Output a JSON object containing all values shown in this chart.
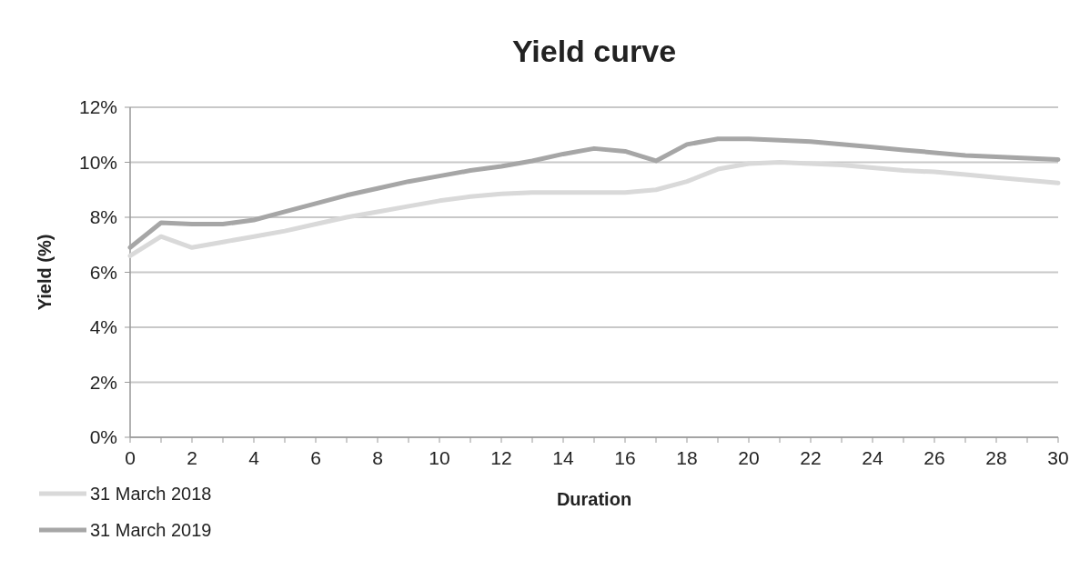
{
  "chart_data": {
    "type": "line",
    "title": "Yield curve",
    "xlabel": "Duration",
    "ylabel": "Yield (%)",
    "x": [
      0,
      1,
      2,
      3,
      4,
      5,
      6,
      7,
      8,
      9,
      10,
      11,
      12,
      13,
      14,
      15,
      16,
      17,
      18,
      19,
      20,
      21,
      22,
      23,
      24,
      25,
      26,
      27,
      28,
      29,
      30
    ],
    "series": [
      {
        "name": "31 March 2018",
        "color": "#d9d9d9",
        "values": [
          6.6,
          7.3,
          6.9,
          7.1,
          7.3,
          7.5,
          7.75,
          8.0,
          8.2,
          8.4,
          8.6,
          8.75,
          8.85,
          8.9,
          8.9,
          8.9,
          8.9,
          9.0,
          9.3,
          9.75,
          9.95,
          10.0,
          9.95,
          9.9,
          9.8,
          9.7,
          9.65,
          9.55,
          9.45,
          9.35,
          9.25
        ]
      },
      {
        "name": "31 March 2019",
        "color": "#a6a6a6",
        "values": [
          6.9,
          7.8,
          7.75,
          7.75,
          7.9,
          8.2,
          8.5,
          8.8,
          9.05,
          9.3,
          9.5,
          9.7,
          9.85,
          10.05,
          10.3,
          10.5,
          10.4,
          10.05,
          10.65,
          10.85,
          10.85,
          10.8,
          10.75,
          10.65,
          10.55,
          10.45,
          10.35,
          10.25,
          10.2,
          10.15,
          10.1
        ]
      }
    ],
    "xlim": [
      0,
      30
    ],
    "xticks": [
      0,
      {
        "value": 1,
        "label": null
      },
      2,
      {
        "value": 3,
        "label": null
      },
      4,
      {
        "value": 5,
        "label": null
      },
      6,
      {
        "value": 7,
        "label": null
      },
      8,
      {
        "value": 9,
        "label": null
      },
      10,
      {
        "value": 11,
        "label": null
      },
      12,
      {
        "value": 13,
        "label": null
      },
      14,
      {
        "value": 15,
        "label": null
      },
      16,
      {
        "value": 17,
        "label": null
      },
      18,
      {
        "value": 19,
        "label": null
      },
      20,
      {
        "value": 21,
        "label": null
      },
      22,
      {
        "value": 23,
        "label": null
      },
      24,
      {
        "value": 25,
        "label": null
      },
      26,
      {
        "value": 27,
        "label": null
      },
      28,
      {
        "value": 29,
        "label": null
      },
      30
    ],
    "ylim": [
      0,
      12
    ],
    "yticks": [
      {
        "value": 0,
        "label": "0%"
      },
      {
        "value": 2,
        "label": "2%"
      },
      {
        "value": 4,
        "label": "4%"
      },
      {
        "value": 6,
        "label": "6%"
      },
      {
        "value": 8,
        "label": "8%"
      },
      {
        "value": 10,
        "label": "10%"
      },
      {
        "value": 12,
        "label": "12%"
      }
    ],
    "grid": "y",
    "legend": "bottom left",
    "marker": "none",
    "line_style": "solid"
  }
}
